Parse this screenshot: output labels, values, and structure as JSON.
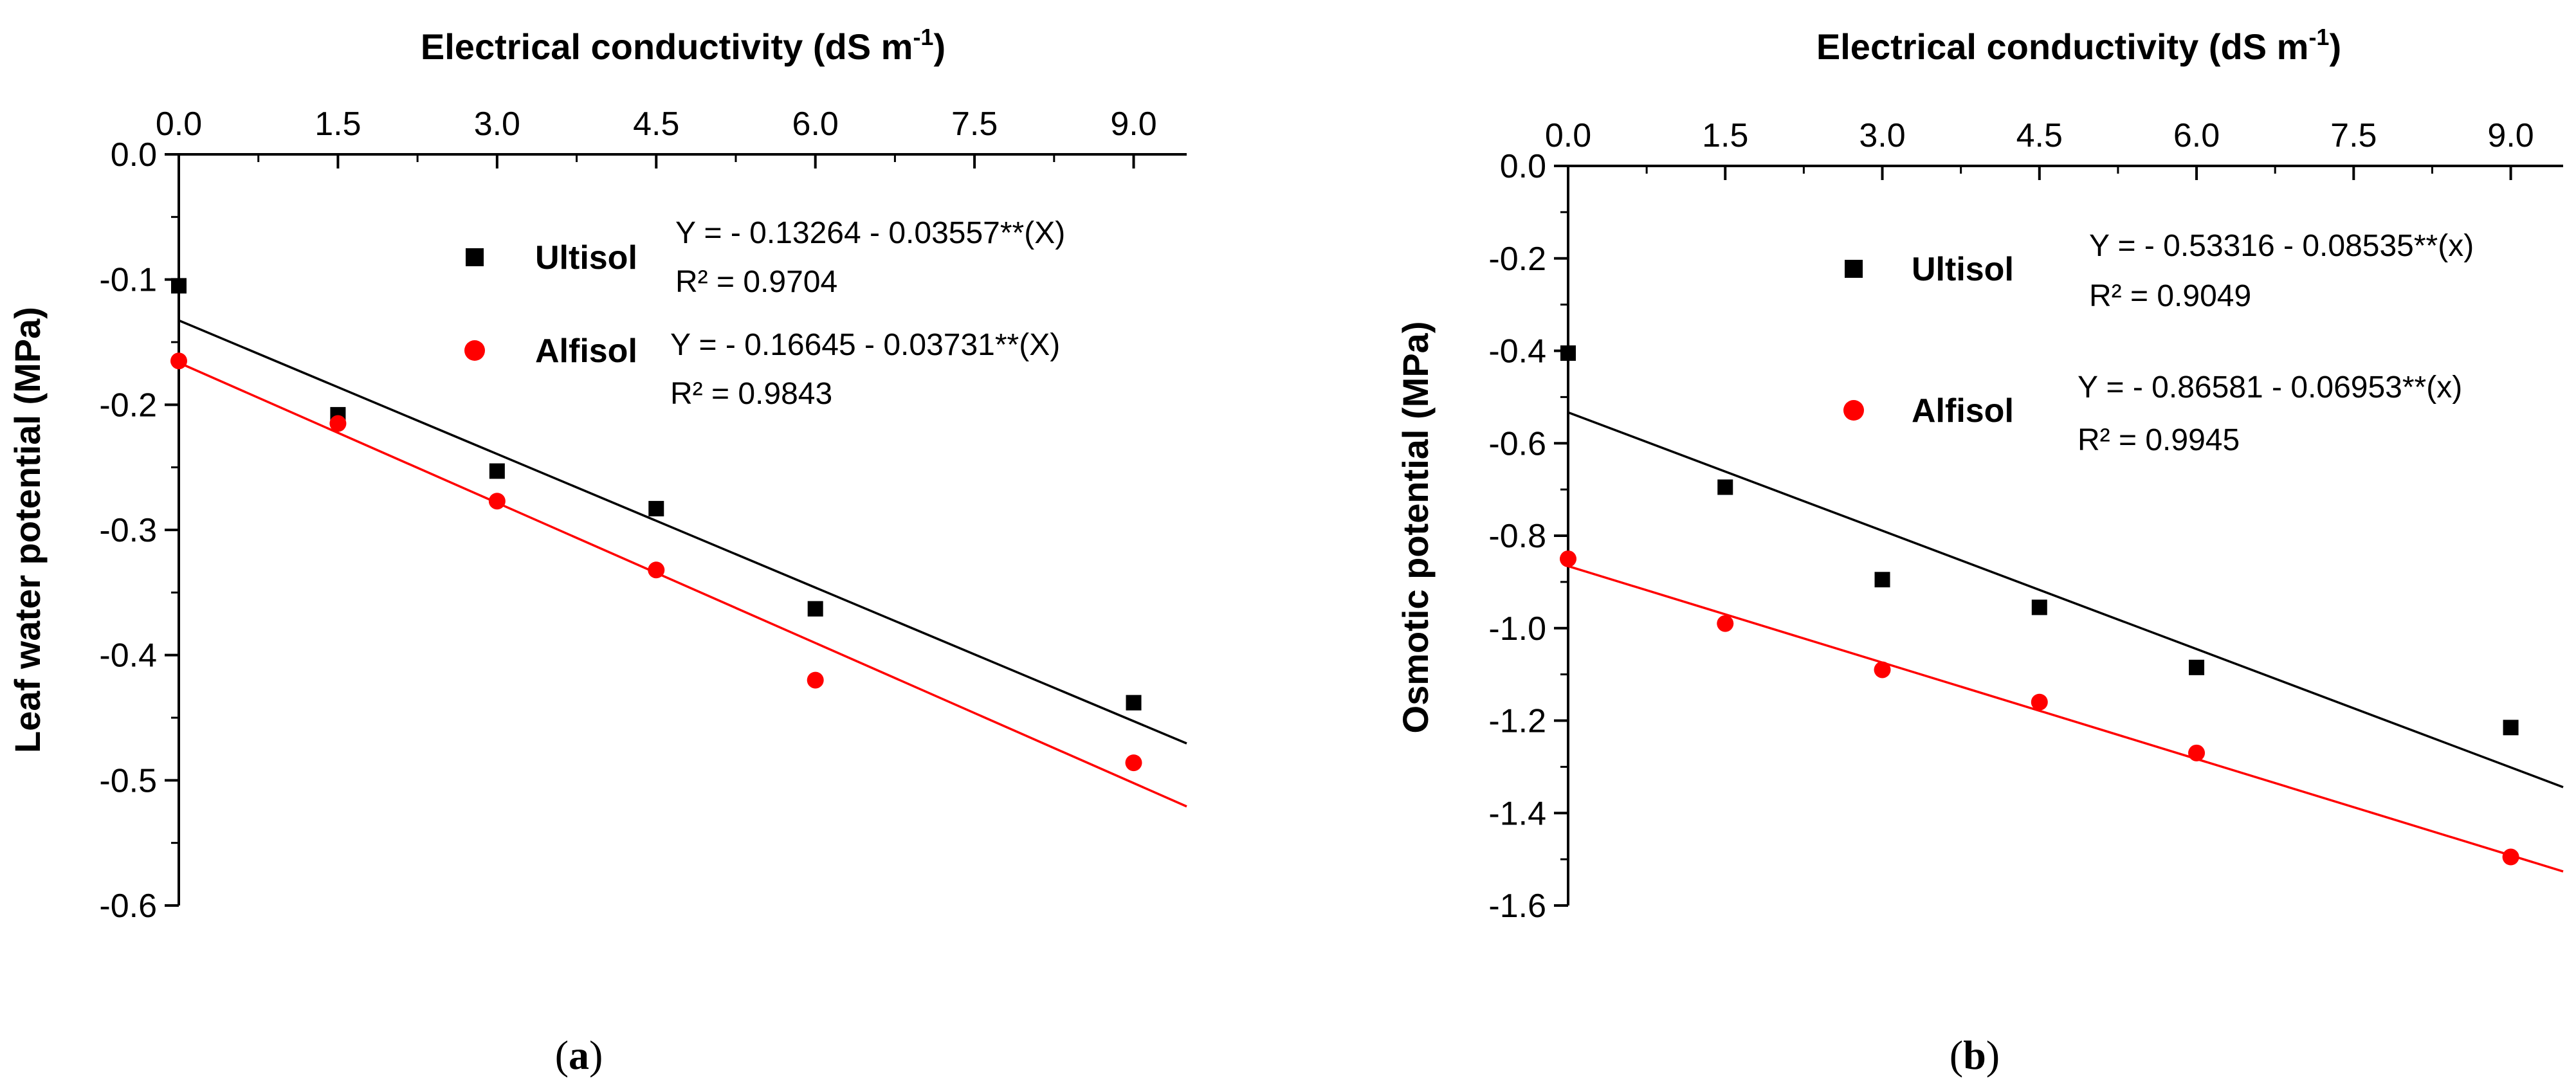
{
  "chart_data": [
    {
      "type": "scatter",
      "panel_label": "a",
      "xlabel_main": "Electrical conductivity (dS m",
      "xlabel_sup": "-1",
      "xlabel_close": ")",
      "ylabel": "Leaf water potential (MPa)",
      "xlim": [
        0,
        9.5
      ],
      "ylim": [
        -0.6,
        0
      ],
      "x_ticks": [
        0,
        1.5,
        3.0,
        4.5,
        6.0,
        7.5,
        9.0
      ],
      "x_tick_labels": [
        "0.0",
        "1.5",
        "3.0",
        "4.5",
        "6.0",
        "7.5",
        "9.0"
      ],
      "y_ticks": [
        0,
        -0.1,
        -0.2,
        -0.3,
        -0.4,
        -0.5,
        -0.6
      ],
      "y_tick_labels": [
        "0.0",
        "-0.1",
        "-0.2",
        "-0.3",
        "-0.4",
        "-0.5",
        "-0.6"
      ],
      "series": [
        {
          "name": "Ultisol",
          "marker": "square",
          "color": "#000000",
          "x": [
            0,
            1.5,
            3.0,
            4.5,
            6.0,
            9.0
          ],
          "y": [
            -0.105,
            -0.208,
            -0.253,
            -0.283,
            -0.363,
            -0.438
          ],
          "fit": {
            "intercept": -0.13264,
            "slope": -0.03557,
            "x_range": [
              0,
              9.5
            ]
          },
          "equation": "Y = - 0.13264 - 0.03557**(X)",
          "r2": "R² = 0.9704"
        },
        {
          "name": "Alfisol",
          "marker": "circle",
          "color": "#ff0000",
          "x": [
            0,
            1.5,
            3.0,
            4.5,
            6.0,
            9.0
          ],
          "y": [
            -0.165,
            -0.215,
            -0.277,
            -0.332,
            -0.42,
            -0.486
          ],
          "fit": {
            "intercept": -0.16645,
            "slope": -0.03731,
            "x_range": [
              0,
              9.5
            ]
          },
          "equation": "Y = - 0.16645 - 0.03731**(X)",
          "r2": "R² = 0.9843"
        }
      ]
    },
    {
      "type": "scatter",
      "panel_label": "b",
      "xlabel_main": "Electrical conductivity (dS m",
      "xlabel_sup": "-1",
      "xlabel_close": ")",
      "ylabel": "Osmotic potential (MPa)",
      "xlim": [
        0,
        9.5
      ],
      "ylim": [
        -1.6,
        0
      ],
      "x_ticks": [
        0,
        1.5,
        3.0,
        4.5,
        6.0,
        7.5,
        9.0
      ],
      "x_tick_labels": [
        "0.0",
        "1.5",
        "3.0",
        "4.5",
        "6.0",
        "7.5",
        "9.0"
      ],
      "y_ticks": [
        0,
        -0.2,
        -0.4,
        -0.6,
        -0.8,
        -1.0,
        -1.2,
        -1.4,
        -1.6
      ],
      "y_tick_labels": [
        "0.0",
        "-0.2",
        "-0.4",
        "-0.6",
        "-0.8",
        "-1.0",
        "-1.2",
        "-1.4",
        "-1.6"
      ],
      "series": [
        {
          "name": "Ultisol",
          "marker": "square",
          "color": "#000000",
          "x": [
            0,
            1.5,
            3.0,
            4.5,
            6.0,
            9.0
          ],
          "y": [
            -0.405,
            -0.695,
            -0.895,
            -0.955,
            -1.085,
            -1.215
          ],
          "fit": {
            "intercept": -0.53316,
            "slope": -0.08535,
            "x_range": [
              0,
              9.5
            ]
          },
          "equation": "Y = - 0.53316 - 0.08535**(x)",
          "r2": "R² = 0.9049"
        },
        {
          "name": "Alfisol",
          "marker": "circle",
          "color": "#ff0000",
          "x": [
            0,
            1.5,
            3.0,
            4.5,
            6.0,
            9.0
          ],
          "y": [
            -0.85,
            -0.99,
            -1.09,
            -1.16,
            -1.27,
            -1.495
          ],
          "fit": {
            "intercept": -0.86581,
            "slope": -0.06953,
            "x_range": [
              0,
              9.5
            ]
          },
          "equation": "Y = - 0.86581 - 0.06953**(x)",
          "r2": "R² = 0.9945"
        }
      ]
    }
  ]
}
